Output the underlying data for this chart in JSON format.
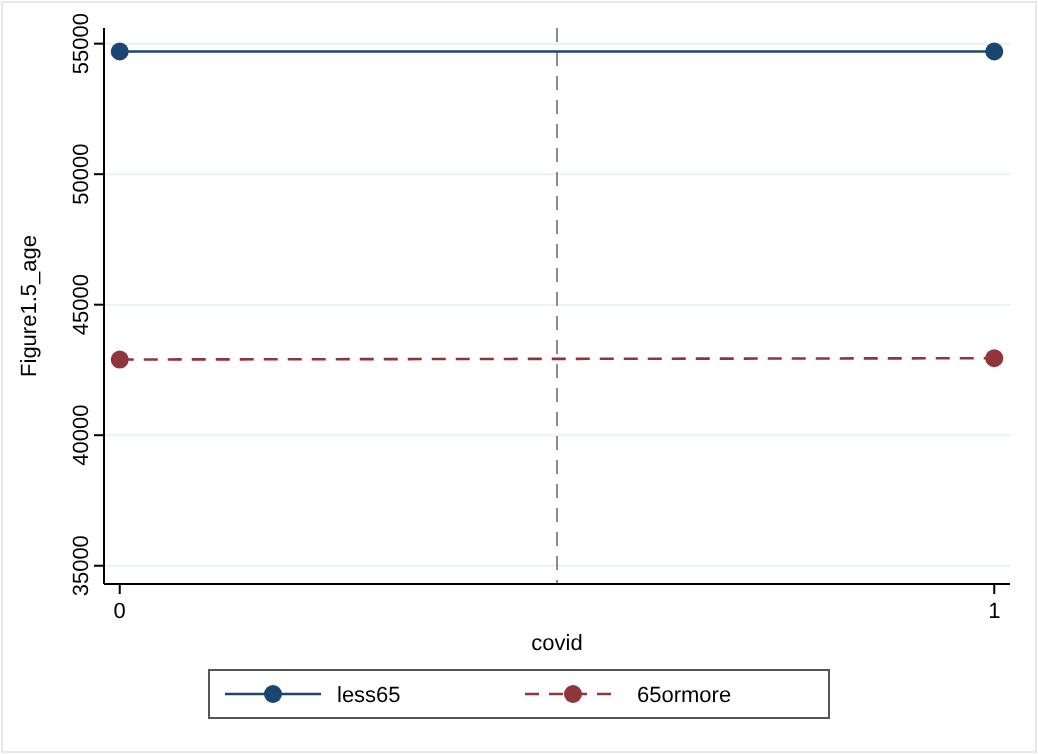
{
  "chart_data": {
    "type": "line",
    "xlabel": "covid",
    "ylabel": "Figure1.5_age",
    "x": [
      0,
      1
    ],
    "xlim": [
      -0.018,
      1.018
    ],
    "xticks": [
      0,
      1
    ],
    "ylim": [
      34300,
      55600
    ],
    "yticks": [
      35000,
      40000,
      45000,
      50000,
      55000
    ],
    "grid": "y",
    "series": [
      {
        "name": "less65",
        "color": "#1a476f",
        "values": [
          54700,
          54700
        ],
        "line_style": "solid"
      },
      {
        "name": "65ormore",
        "color": "#90353b",
        "values": [
          42900,
          42950
        ],
        "line_style": "dashed"
      }
    ],
    "marker": "circle",
    "legend": "bottom",
    "ref_lines": [
      {
        "axis": "x",
        "value": 0.5,
        "color": "#8c8c8c",
        "line_style": "dashed"
      }
    ]
  }
}
